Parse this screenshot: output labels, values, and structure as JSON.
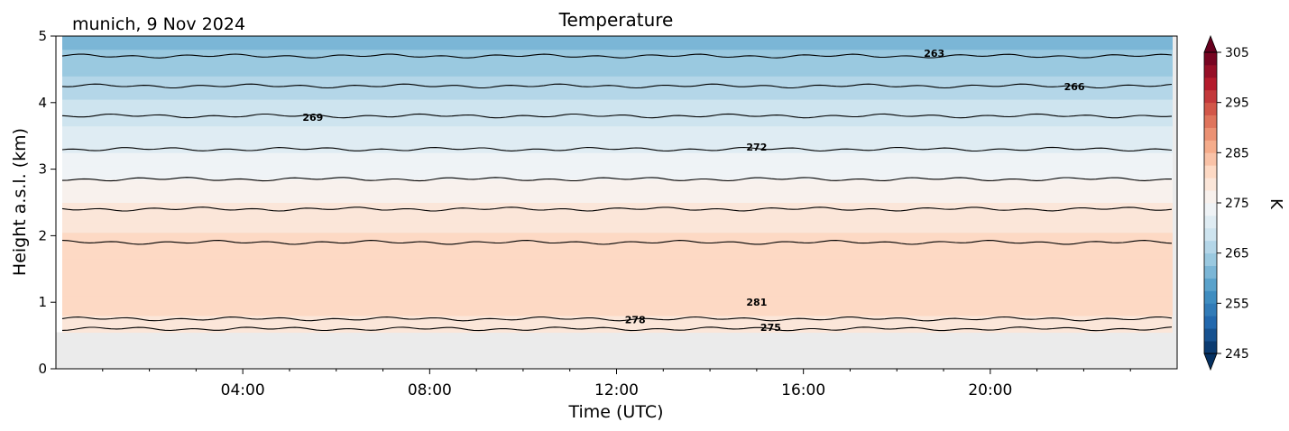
{
  "chart_data": {
    "type": "heatmap",
    "title": "Temperature",
    "subtitle": "munich, 9 Nov 2024",
    "xlabel": "Time (UTC)",
    "ylabel": "Height a.s.l. (km)",
    "x_range_hours": [
      0,
      24
    ],
    "ylim": [
      0,
      5
    ],
    "x_ticks": [
      {
        "hour": 4,
        "label": "04:00"
      },
      {
        "hour": 8,
        "label": "08:00"
      },
      {
        "hour": 12,
        "label": "12:00"
      },
      {
        "hour": 16,
        "label": "16:00"
      },
      {
        "hour": 20,
        "label": "20:00"
      }
    ],
    "y_ticks": [
      {
        "value": 0,
        "label": "0"
      },
      {
        "value": 1,
        "label": "1"
      },
      {
        "value": 2,
        "label": "2"
      },
      {
        "value": 3,
        "label": "3"
      },
      {
        "value": 4,
        "label": "4"
      },
      {
        "value": 5,
        "label": "5"
      }
    ],
    "no_data_below_km": 0.55,
    "colorbar": {
      "label": "K",
      "range": [
        245,
        305
      ],
      "ticks": [
        "245",
        "255",
        "265",
        "275",
        "285",
        "295",
        "305"
      ],
      "colormap": "RdBu_r",
      "extend": "both"
    },
    "temperature_profile": [
      {
        "height_km": 0.55,
        "temp_k": 279
      },
      {
        "height_km": 0.7,
        "temp_k": 279.5
      },
      {
        "height_km": 1.0,
        "temp_k": 281
      },
      {
        "height_km": 1.4,
        "temp_k": 282
      },
      {
        "height_km": 1.9,
        "temp_k": 281
      },
      {
        "height_km": 2.4,
        "temp_k": 278
      },
      {
        "height_km": 2.85,
        "temp_k": 275
      },
      {
        "height_km": 3.3,
        "temp_k": 272
      },
      {
        "height_km": 3.8,
        "temp_k": 269
      },
      {
        "height_km": 4.25,
        "temp_k": 266
      },
      {
        "height_km": 4.7,
        "temp_k": 263
      },
      {
        "height_km": 5.0,
        "temp_k": 261
      }
    ],
    "contour_lines": [
      {
        "height_km": 0.6
      },
      {
        "height_km": 0.75
      },
      {
        "height_km": 1.9
      },
      {
        "height_km": 2.4
      },
      {
        "height_km": 2.85
      },
      {
        "height_km": 3.3
      },
      {
        "height_km": 3.8
      },
      {
        "height_km": 4.25
      },
      {
        "height_km": 4.7
      }
    ],
    "contour_labels": [
      {
        "text": "263",
        "hour": 18.8,
        "height_km": 4.74
      },
      {
        "text": "266",
        "hour": 21.8,
        "height_km": 4.24
      },
      {
        "text": "269",
        "hour": 5.5,
        "height_km": 3.78
      },
      {
        "text": "272",
        "hour": 15.0,
        "height_km": 3.33
      },
      {
        "text": "281",
        "hour": 15.0,
        "height_km": 1.0
      },
      {
        "text": "278",
        "hour": 12.4,
        "height_km": 0.74
      },
      {
        "text": "275",
        "hour": 15.3,
        "height_km": 0.62
      }
    ]
  }
}
